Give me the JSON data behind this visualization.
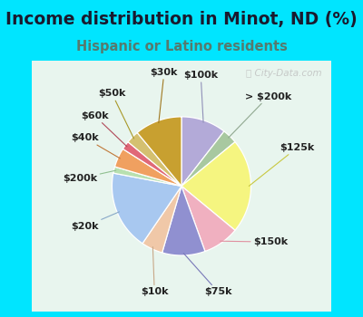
{
  "title": "Income distribution in Minot, ND (%)",
  "subtitle": "Hispanic or Latino residents",
  "title_color": "#1a1a2e",
  "subtitle_color": "#557a6e",
  "bg_outer": "#00e5ff",
  "bg_chart": "#e8f5ee",
  "watermark": "ⓘ City-Data.com",
  "labels": [
    "$100k",
    "> $200k",
    "$125k",
    "$150k",
    "$75k",
    "$10k",
    "$20k",
    "$200k",
    "$40k",
    "$60k",
    "$50k",
    "$30k"
  ],
  "values": [
    10.5,
    3.5,
    22.0,
    8.5,
    10.0,
    5.0,
    18.5,
    1.5,
    4.5,
    2.0,
    3.0,
    11.0
  ],
  "colors": [
    "#b3aad8",
    "#a8c8a0",
    "#f5f580",
    "#f0b0c0",
    "#9090d0",
    "#f0c8a8",
    "#a8c8f0",
    "#b8e0b0",
    "#f0a060",
    "#e06878",
    "#d4c070",
    "#c8a030"
  ],
  "startangle": 90,
  "label_fontsize": 8.0,
  "title_fontsize": 13.5,
  "subtitle_fontsize": 10.5,
  "label_color": "#222222",
  "line_color": "#999999"
}
